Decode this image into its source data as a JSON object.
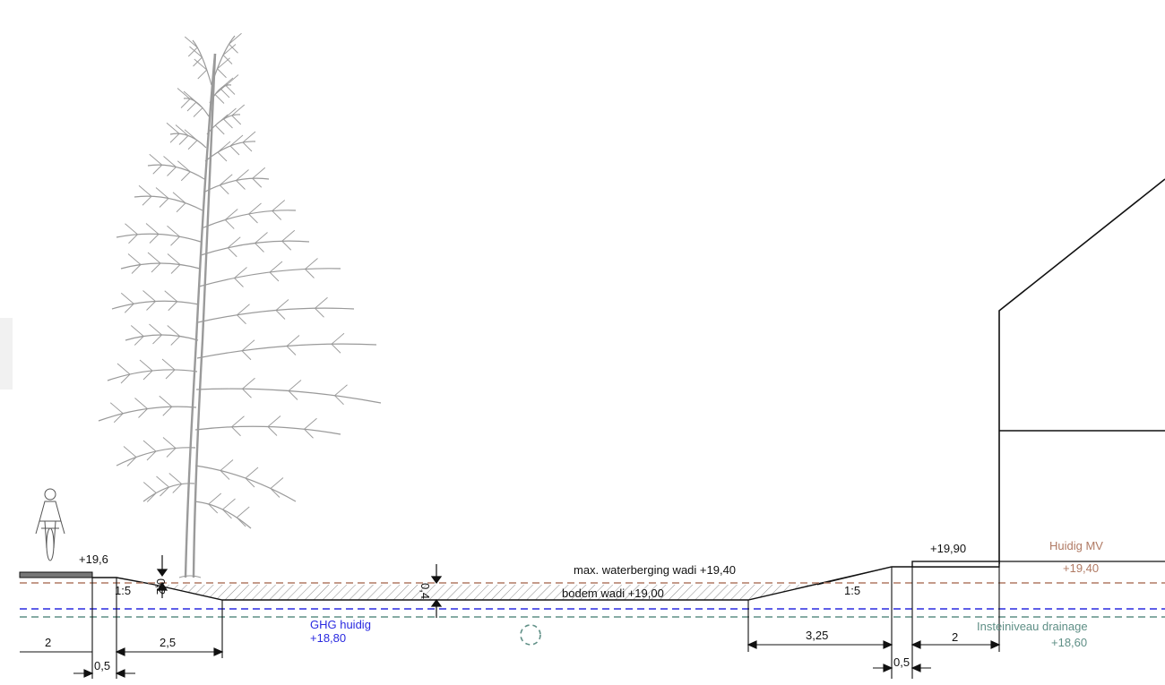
{
  "colors": {
    "line": "#111111",
    "tree": "#9a9a9a",
    "current_ground": "#b07a64",
    "ghg": "#2a2ae0",
    "drainage": "#5f8f86",
    "hatch": "#8a8a8a"
  },
  "icons": [
    "cyclist-icon",
    "tree-icon",
    "house-icon",
    "drain-pipe-icon",
    "dimension-arrow-icon"
  ],
  "levels": {
    "path_left": "+19,6",
    "path_right": "+19,90",
    "max_water": "max. waterberging wadi +19,40",
    "wadi_bottom": "bodem wadi +19,00",
    "current_ground_label": "Huidig MV",
    "current_ground_value": "+19,40",
    "ghg_label": "GHG huidig",
    "ghg_value": "+18,80",
    "drainage_label": "Insteiniveau drainage",
    "drainage_value": "+18,60"
  },
  "slopes": {
    "left": "1:5",
    "right": "1:5"
  },
  "dimensions": {
    "left_path": "2",
    "left_offset": "0,5",
    "left_slope": "2,5",
    "right_slope": "3,25",
    "right_offset": "0,5",
    "right_path": "2",
    "freeboard": "0,2",
    "depth": "0,4"
  }
}
